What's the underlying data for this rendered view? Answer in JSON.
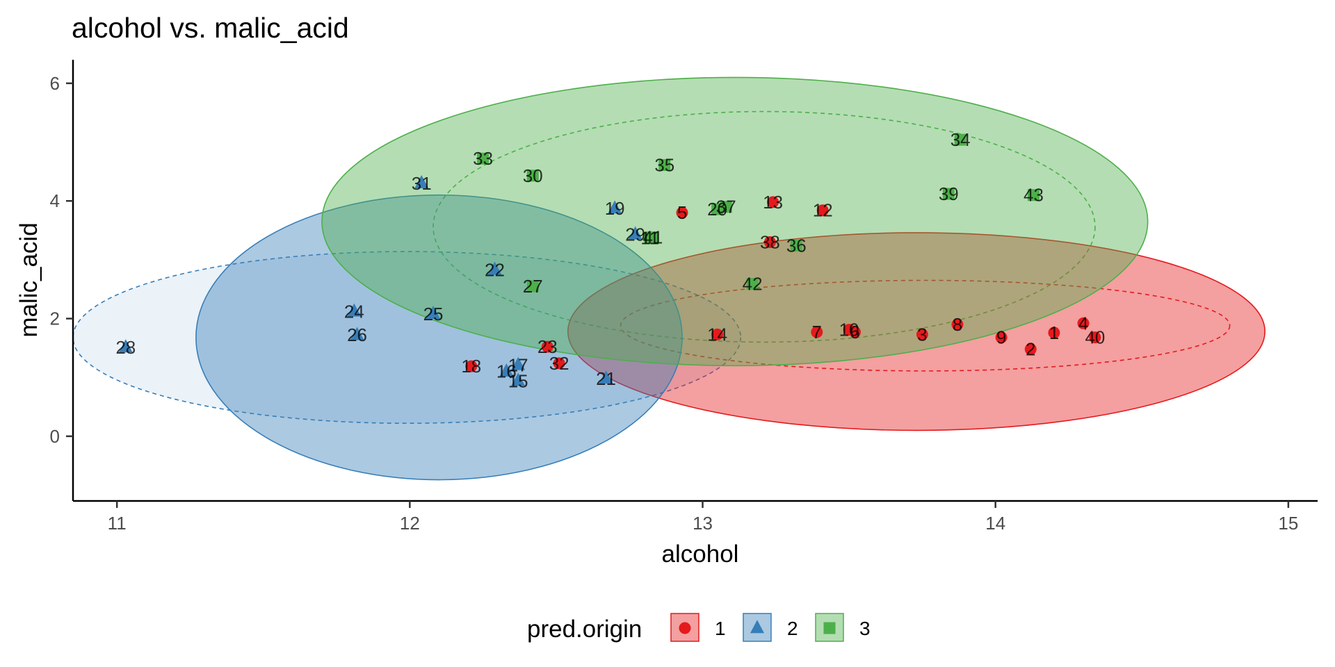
{
  "chart_data": {
    "type": "scatter",
    "title": "alcohol vs. malic_acid",
    "xlabel": "alcohol",
    "ylabel": "malic_acid",
    "xlim": [
      10.85,
      15.1
    ],
    "ylim": [
      -1.1,
      6.4
    ],
    "xticks": [
      11,
      12,
      13,
      14,
      15
    ],
    "yticks": [
      0,
      2,
      4,
      6
    ],
    "grid": false,
    "legend": {
      "title": "pred.origin",
      "position": "bottom",
      "entries": [
        "1",
        "2",
        "3"
      ]
    },
    "colors": {
      "1": "#e41a1c",
      "2": "#377eb8",
      "3": "#4daf4a"
    },
    "shapes": {
      "1": "circle",
      "2": "triangle",
      "3": "square"
    },
    "points": [
      {
        "label": "1",
        "x": 14.2,
        "y": 1.76,
        "group": "1"
      },
      {
        "label": "2",
        "x": 14.12,
        "y": 1.48,
        "group": "1"
      },
      {
        "label": "3",
        "x": 13.75,
        "y": 1.73,
        "group": "1"
      },
      {
        "label": "4",
        "x": 14.3,
        "y": 1.92,
        "group": "1"
      },
      {
        "label": "5",
        "x": 12.93,
        "y": 3.8,
        "group": "1"
      },
      {
        "label": "6",
        "x": 13.52,
        "y": 1.77,
        "group": "1"
      },
      {
        "label": "7",
        "x": 13.39,
        "y": 1.77,
        "group": "1"
      },
      {
        "label": "8",
        "x": 13.87,
        "y": 1.9,
        "group": "1"
      },
      {
        "label": "9",
        "x": 14.02,
        "y": 1.68,
        "group": "1"
      },
      {
        "label": "10",
        "x": 13.5,
        "y": 1.81,
        "group": "1"
      },
      {
        "label": "12",
        "x": 13.41,
        "y": 3.84,
        "group": "1"
      },
      {
        "label": "13",
        "x": 13.24,
        "y": 3.98,
        "group": "1"
      },
      {
        "label": "14",
        "x": 13.05,
        "y": 1.73,
        "group": "1"
      },
      {
        "label": "18",
        "x": 12.21,
        "y": 1.19,
        "group": "1"
      },
      {
        "label": "23",
        "x": 12.47,
        "y": 1.52,
        "group": "1"
      },
      {
        "label": "32",
        "x": 12.51,
        "y": 1.24,
        "group": "1"
      },
      {
        "label": "38",
        "x": 13.23,
        "y": 3.3,
        "group": "1"
      },
      {
        "label": "40",
        "x": 14.34,
        "y": 1.68,
        "group": "1"
      },
      {
        "label": "15",
        "x": 12.37,
        "y": 0.94,
        "group": "2"
      },
      {
        "label": "16",
        "x": 12.33,
        "y": 1.1,
        "group": "2"
      },
      {
        "label": "17",
        "x": 12.37,
        "y": 1.21,
        "group": "2"
      },
      {
        "label": "19",
        "x": 12.7,
        "y": 3.87,
        "group": "2"
      },
      {
        "label": "21",
        "x": 12.67,
        "y": 0.98,
        "group": "2"
      },
      {
        "label": "22",
        "x": 12.29,
        "y": 2.83,
        "group": "2"
      },
      {
        "label": "24",
        "x": 11.81,
        "y": 2.12,
        "group": "2"
      },
      {
        "label": "25",
        "x": 12.08,
        "y": 2.08,
        "group": "2"
      },
      {
        "label": "26",
        "x": 11.82,
        "y": 1.72,
        "group": "2"
      },
      {
        "label": "28",
        "x": 11.03,
        "y": 1.51,
        "group": "2"
      },
      {
        "label": "29",
        "x": 12.77,
        "y": 3.43,
        "group": "2"
      },
      {
        "label": "31",
        "x": 12.04,
        "y": 4.3,
        "group": "2"
      },
      {
        "label": "11",
        "x": 12.82,
        "y": 3.37,
        "group": "3"
      },
      {
        "label": "20",
        "x": 13.05,
        "y": 3.86,
        "group": "3"
      },
      {
        "label": "27",
        "x": 12.42,
        "y": 2.55,
        "group": "3"
      },
      {
        "label": "30",
        "x": 12.42,
        "y": 4.43,
        "group": "3"
      },
      {
        "label": "33",
        "x": 12.25,
        "y": 4.72,
        "group": "3"
      },
      {
        "label": "34",
        "x": 13.88,
        "y": 5.04,
        "group": "3"
      },
      {
        "label": "35",
        "x": 12.87,
        "y": 4.61,
        "group": "3"
      },
      {
        "label": "36",
        "x": 13.32,
        "y": 3.24,
        "group": "3"
      },
      {
        "label": "37",
        "x": 13.08,
        "y": 3.9,
        "group": "3"
      },
      {
        "label": "39",
        "x": 13.84,
        "y": 4.12,
        "group": "3"
      },
      {
        "label": "41",
        "x": 12.83,
        "y": 3.38,
        "group": "3"
      },
      {
        "label": "42",
        "x": 13.17,
        "y": 2.59,
        "group": "3"
      },
      {
        "label": "43",
        "x": 14.13,
        "y": 4.1,
        "group": "3"
      }
    ],
    "ellipses": [
      {
        "group": "1",
        "kind": "solid",
        "cx": 13.73,
        "cy": 1.78,
        "rx": 1.19,
        "ry": 1.68
      },
      {
        "group": "1",
        "kind": "dashed",
        "cx": 13.76,
        "cy": 1.88,
        "rx": 1.04,
        "ry": 0.77
      },
      {
        "group": "2",
        "kind": "solid",
        "cx": 12.1,
        "cy": 1.68,
        "rx": 0.83,
        "ry": 2.42
      },
      {
        "group": "2",
        "kind": "dashed",
        "cx": 11.99,
        "cy": 1.68,
        "rx": 1.14,
        "ry": 1.46
      },
      {
        "group": "3",
        "kind": "solid",
        "cx": 13.11,
        "cy": 3.65,
        "rx": 1.41,
        "ry": 2.45
      },
      {
        "group": "3",
        "kind": "dashed",
        "cx": 13.21,
        "cy": 3.56,
        "rx": 1.13,
        "ry": 1.96
      }
    ]
  }
}
